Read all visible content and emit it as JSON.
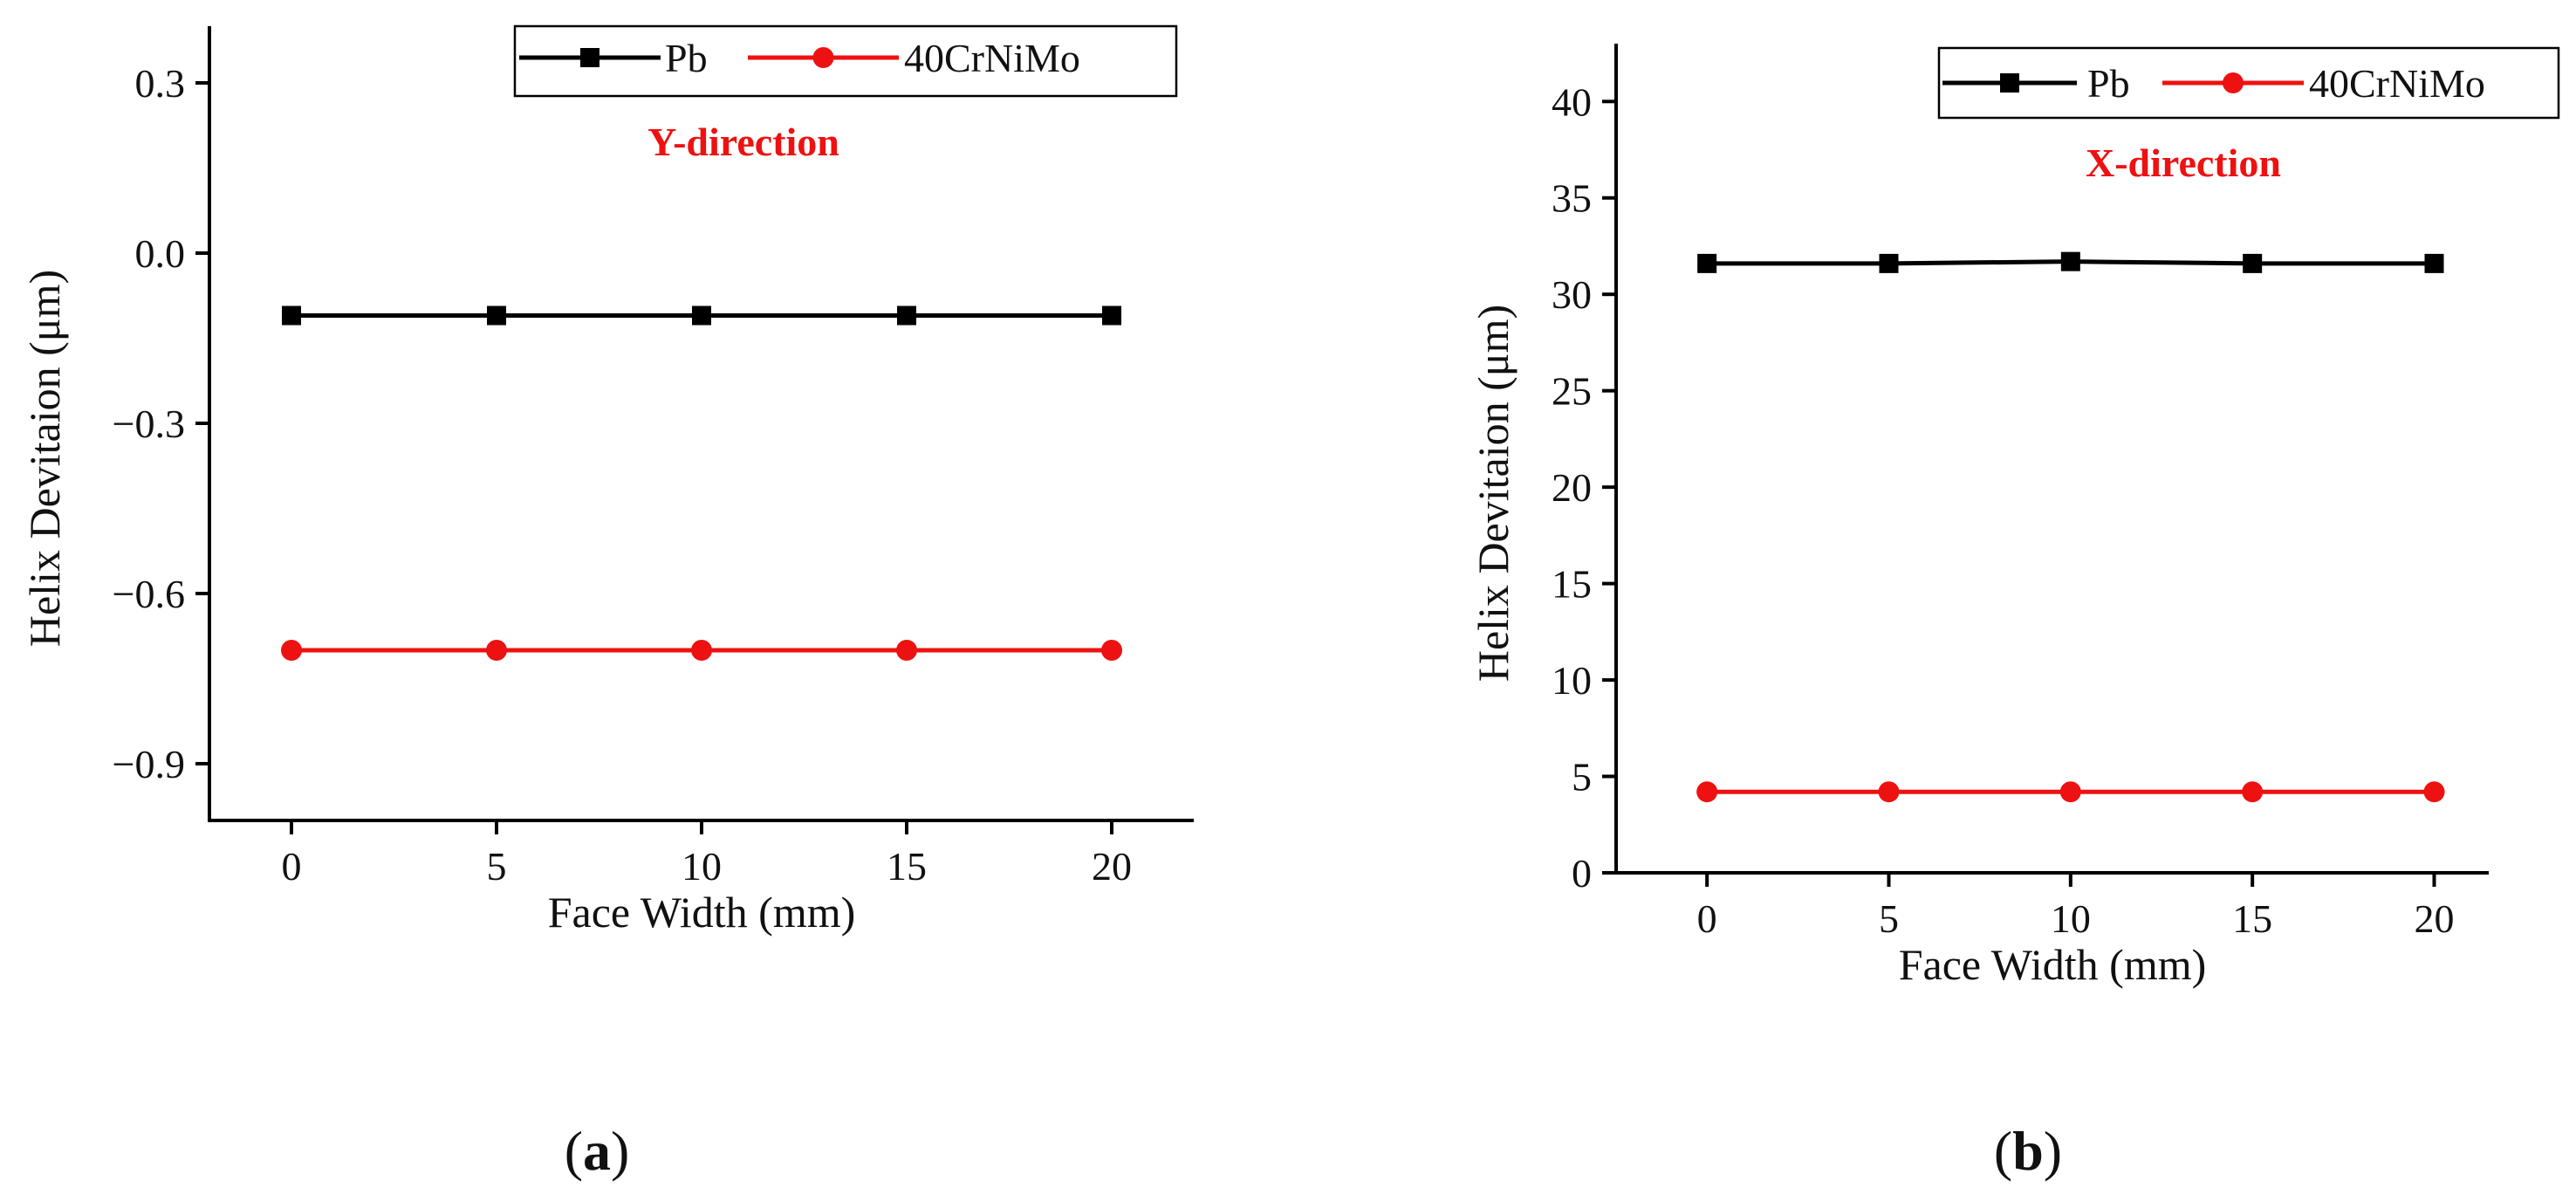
{
  "chart_data": [
    {
      "type": "line",
      "panel_label": "a",
      "annotation": "Y-direction",
      "annotation_color": "#ee1111",
      "xlabel": "Face Width (mm)",
      "ylabel": "Helix Devitaion (μm)",
      "x": [
        0,
        5,
        10,
        15,
        20
      ],
      "xlim": [
        -2,
        22
      ],
      "ylim": [
        -1.0,
        0.4
      ],
      "xticks": [
        0,
        5,
        10,
        15,
        20
      ],
      "yticks": [
        0.3,
        0.0,
        -0.3,
        -0.6,
        -0.9
      ],
      "ytick_labels": [
        "0.3",
        "0.0",
        "−0.3",
        "−0.6",
        "−0.9"
      ],
      "grid": false,
      "legend_position": "top-right",
      "series": [
        {
          "name": "Pb",
          "color": "#000000",
          "marker": "square",
          "values": [
            -0.11,
            -0.11,
            -0.11,
            -0.11,
            -0.11
          ]
        },
        {
          "name": "40CrNiMo",
          "color": "#ee1111",
          "marker": "circle",
          "values": [
            -0.7,
            -0.7,
            -0.7,
            -0.7,
            -0.7
          ]
        }
      ]
    },
    {
      "type": "line",
      "panel_label": "b",
      "annotation": "X-direction",
      "annotation_color": "#ee1111",
      "xlabel": "Face Width (mm)",
      "ylabel": "Helix Devitaion (μm)",
      "x": [
        0,
        5,
        10,
        15,
        20
      ],
      "xlim": [
        -2.5,
        21.5
      ],
      "ylim": [
        0,
        43
      ],
      "xticks": [
        0,
        5,
        10,
        15,
        20
      ],
      "yticks": [
        0,
        5,
        10,
        15,
        20,
        25,
        30,
        35,
        40
      ],
      "ytick_labels": [
        "0",
        "5",
        "10",
        "15",
        "20",
        "25",
        "30",
        "35",
        "40"
      ],
      "grid": false,
      "legend_position": "top-right",
      "series": [
        {
          "name": "Pb",
          "color": "#000000",
          "marker": "square",
          "values": [
            31.6,
            31.6,
            31.7,
            31.6,
            31.6
          ]
        },
        {
          "name": "40CrNiMo",
          "color": "#ee1111",
          "marker": "circle",
          "values": [
            4.2,
            4.2,
            4.2,
            4.2,
            4.2
          ]
        }
      ]
    }
  ]
}
